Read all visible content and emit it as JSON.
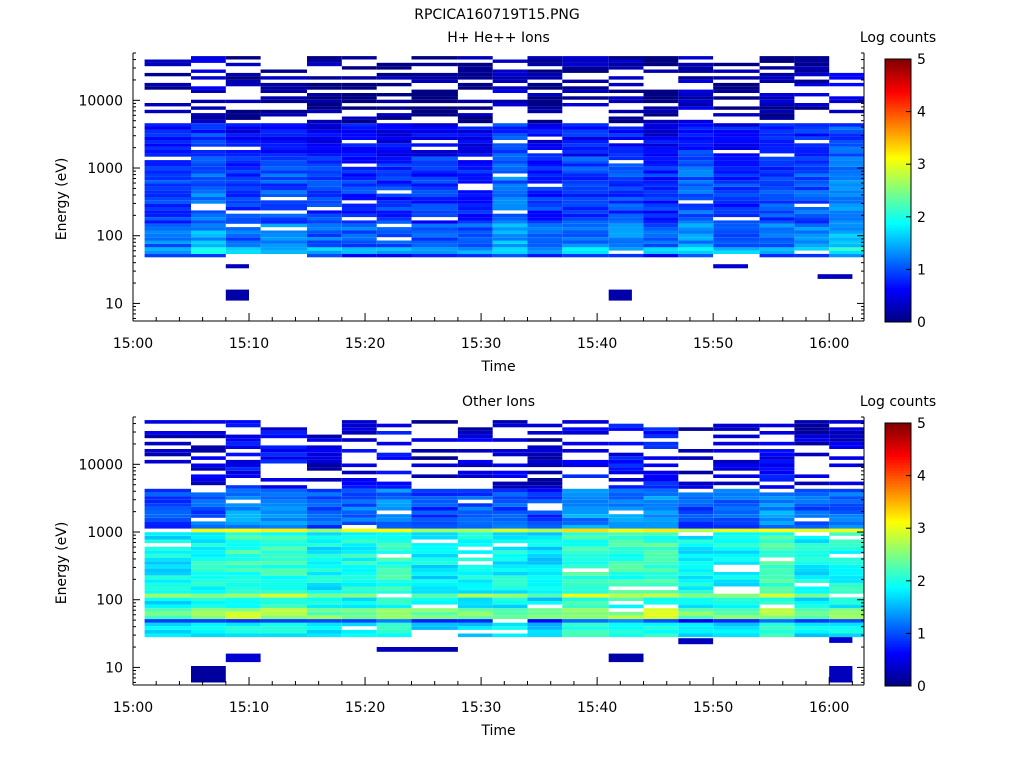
{
  "figure_title": "RPCICA160719T15.PNG",
  "chart_data": [
    {
      "type": "heatmap",
      "title": "H+ He++ Ions",
      "xlabel": "Time",
      "ylabel": "Energy (eV)",
      "colorbar_label": "Log counts",
      "y_scale": "log",
      "ylim": [
        5.5,
        50000
      ],
      "y_ticks": [
        10,
        100,
        1000,
        10000
      ],
      "y_tick_labels": [
        "10",
        "100",
        "1000",
        "10000"
      ],
      "x_range": [
        "15:00",
        "16:03"
      ],
      "x_ticks": [
        "15:00",
        "15:10",
        "15:20",
        "15:30",
        "15:40",
        "15:50",
        "16:00"
      ],
      "color_range": [
        0,
        5
      ],
      "colorbar_ticks": [
        "0",
        "1",
        "2",
        "3",
        "4",
        "5"
      ],
      "colormap": "jet",
      "time_bins": [
        "15:01",
        "15:05",
        "15:08",
        "15:11",
        "15:15",
        "15:18",
        "15:21",
        "15:24",
        "15:28",
        "15:31",
        "15:34",
        "15:37",
        "15:41",
        "15:44",
        "15:47",
        "15:50",
        "15:54",
        "15:57",
        "16:00"
      ],
      "cells": [
        {
          "x_range": [
            "15:08",
            "15:10"
          ],
          "energy_range": [
            11,
            16
          ],
          "log_counts": 0.2
        },
        {
          "x_range": [
            "15:41",
            "15:43"
          ],
          "energy_range": [
            11,
            16
          ],
          "log_counts": 0.2
        },
        {
          "x_range": [
            "15:08",
            "15:10"
          ],
          "energy_range": [
            33,
            38
          ],
          "log_counts": 0.3
        },
        {
          "x_range": [
            "15:50",
            "15:53"
          ],
          "energy_range": [
            33,
            38
          ],
          "log_counts": 0.4
        },
        {
          "x_range": [
            "15:59",
            "16:02"
          ],
          "energy_range": [
            23,
            27
          ],
          "log_counts": 0.3
        }
      ],
      "band_profile": [
        {
          "energy_range": [
            48,
            55
          ],
          "log_counts": 1.0
        },
        {
          "energy_range": [
            55,
            70
          ],
          "log_counts": 1.7
        },
        {
          "energy_range": [
            70,
            150
          ],
          "log_counts": 1.3
        },
        {
          "energy_range": [
            150,
            1500
          ],
          "log_counts": 1.05
        },
        {
          "energy_range": [
            1500,
            4500
          ],
          "log_counts": 0.8
        },
        {
          "energy_range": [
            4500,
            45000
          ],
          "log_counts": 0.3
        }
      ]
    },
    {
      "type": "heatmap",
      "title": "Other Ions",
      "xlabel": "Time",
      "ylabel": "Energy (eV)",
      "colorbar_label": "Log counts",
      "y_scale": "log",
      "ylim": [
        5.5,
        50000
      ],
      "y_ticks": [
        10,
        100,
        1000,
        10000
      ],
      "y_tick_labels": [
        "10",
        "100",
        "1000",
        "10000"
      ],
      "x_range": [
        "15:00",
        "16:03"
      ],
      "x_ticks": [
        "15:00",
        "15:10",
        "15:20",
        "15:30",
        "15:40",
        "15:50",
        "16:00"
      ],
      "color_range": [
        0,
        5
      ],
      "colorbar_ticks": [
        "0",
        "1",
        "2",
        "3",
        "4",
        "5"
      ],
      "colormap": "jet",
      "time_bins": [
        "15:01",
        "15:05",
        "15:08",
        "15:11",
        "15:15",
        "15:18",
        "15:21",
        "15:24",
        "15:28",
        "15:31",
        "15:34",
        "15:37",
        "15:41",
        "15:44",
        "15:47",
        "15:50",
        "15:54",
        "15:57",
        "16:00"
      ],
      "cells": [
        {
          "x_range": [
            "15:05",
            "15:08"
          ],
          "energy_range": [
            6,
            10.5
          ],
          "log_counts": 0.15
        },
        {
          "x_range": [
            "15:08",
            "15:11"
          ],
          "energy_range": [
            12,
            16
          ],
          "log_counts": 0.4
        },
        {
          "x_range": [
            "15:21",
            "15:24"
          ],
          "energy_range": [
            17,
            20
          ],
          "log_counts": 0.3
        },
        {
          "x_range": [
            "15:24",
            "15:28"
          ],
          "energy_range": [
            17,
            20
          ],
          "log_counts": 0.25
        },
        {
          "x_range": [
            "15:41",
            "15:44"
          ],
          "energy_range": [
            12,
            16
          ],
          "log_counts": 0.2
        },
        {
          "x_range": [
            "15:47",
            "15:50"
          ],
          "energy_range": [
            22,
            27
          ],
          "log_counts": 0.3
        },
        {
          "x_range": [
            "16:00",
            "16:02"
          ],
          "energy_range": [
            6,
            10.5
          ],
          "log_counts": 0.3
        },
        {
          "x_range": [
            "16:00",
            "16:02"
          ],
          "energy_range": [
            23,
            28
          ],
          "log_counts": 0.4
        }
      ],
      "band_profile": [
        {
          "energy_range": [
            28,
            45
          ],
          "log_counts": 1.8
        },
        {
          "energy_range": [
            45,
            55
          ],
          "log_counts": 0.9
        },
        {
          "energy_range": [
            55,
            75
          ],
          "log_counts": 2.5
        },
        {
          "energy_range": [
            75,
            110
          ],
          "log_counts": 1.9
        },
        {
          "energy_range": [
            110,
            130
          ],
          "log_counts": 2.7
        },
        {
          "energy_range": [
            130,
            950
          ],
          "log_counts": 1.95
        },
        {
          "energy_range": [
            950,
            1100
          ],
          "log_counts": 2.9
        },
        {
          "energy_range": [
            1100,
            4500
          ],
          "log_counts": 1.1
        },
        {
          "energy_range": [
            4500,
            45000
          ],
          "log_counts": 0.45
        }
      ]
    }
  ]
}
